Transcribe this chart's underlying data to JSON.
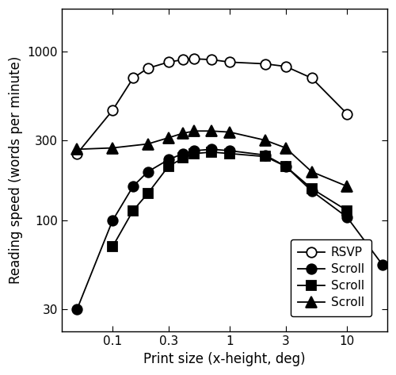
{
  "title": "",
  "xlabel": "Print size (x-height, deg)",
  "ylabel": "Reading speed (words per minute)",
  "series": [
    {
      "label": "RSVP",
      "marker": "o",
      "fillstyle": "none",
      "x": [
        0.05,
        0.1,
        0.15,
        0.2,
        0.3,
        0.4,
        0.5,
        0.7,
        1.0,
        2.0,
        3.0,
        5.0,
        10.0
      ],
      "y": [
        250,
        450,
        700,
        800,
        870,
        900,
        910,
        900,
        870,
        850,
        820,
        700,
        430
      ]
    },
    {
      "label": "Scroll",
      "marker": "o",
      "fillstyle": "full",
      "x": [
        0.05,
        0.1,
        0.15,
        0.2,
        0.3,
        0.4,
        0.5,
        0.7,
        1.0,
        2.0,
        3.0,
        5.0,
        10.0,
        20.0
      ],
      "y": [
        30,
        100,
        160,
        195,
        230,
        250,
        260,
        265,
        260,
        245,
        210,
        150,
        105,
        55
      ]
    },
    {
      "label": "Scroll",
      "marker": "s",
      "fillstyle": "full",
      "x": [
        0.1,
        0.15,
        0.2,
        0.3,
        0.4,
        0.5,
        0.7,
        1.0,
        2.0,
        3.0,
        5.0,
        10.0
      ],
      "y": [
        70,
        115,
        145,
        210,
        235,
        250,
        255,
        250,
        240,
        210,
        155,
        115
      ]
    },
    {
      "label": "Scroll",
      "marker": "^",
      "fillstyle": "full",
      "x": [
        0.05,
        0.1,
        0.2,
        0.3,
        0.4,
        0.5,
        0.7,
        1.0,
        2.0,
        3.0,
        5.0,
        10.0
      ],
      "y": [
        265,
        270,
        285,
        310,
        330,
        340,
        340,
        335,
        300,
        270,
        195,
        160
      ]
    }
  ],
  "xlim": [
    0.037,
    22
  ],
  "ylim": [
    22,
    1800
  ],
  "xticks": [
    0.1,
    0.3,
    1.0,
    3.0,
    10.0
  ],
  "yticks": [
    30,
    100,
    300,
    1000
  ],
  "marker_sizes": {
    "o": 9,
    "s": 8,
    "^": 10
  },
  "figsize": [
    5.0,
    4.73
  ],
  "dpi": 100
}
